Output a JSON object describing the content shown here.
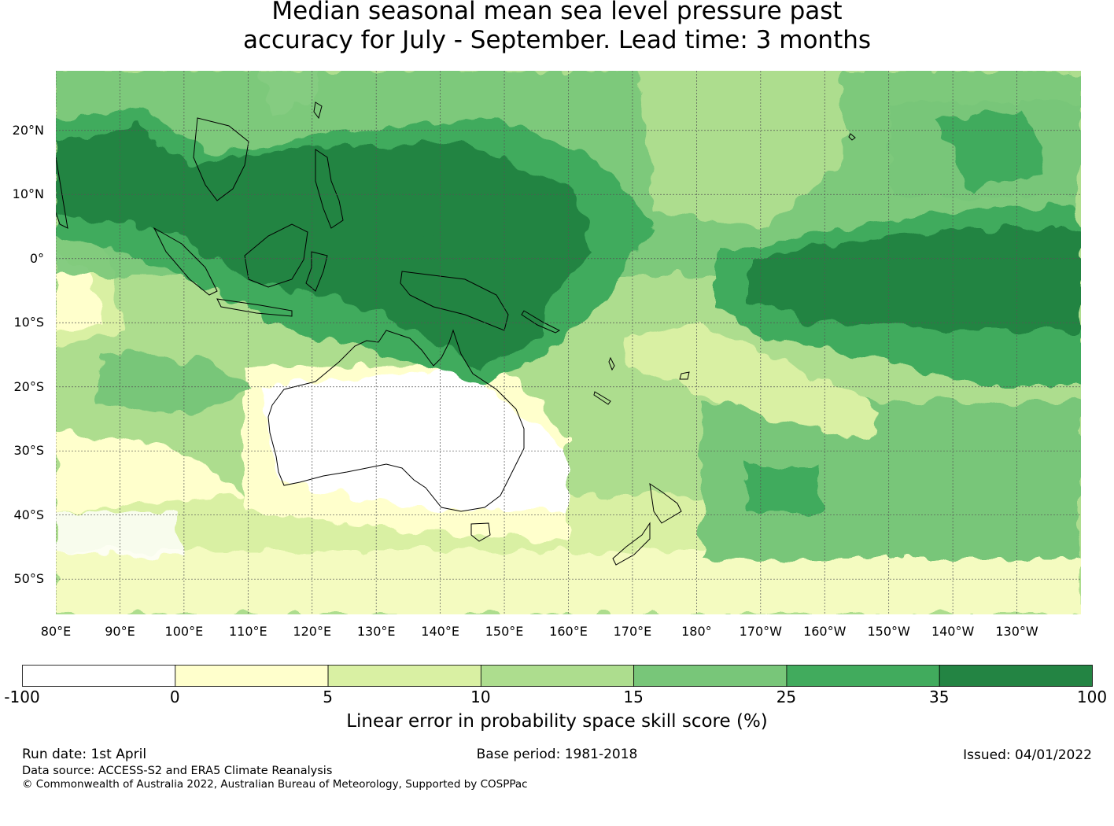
{
  "title": {
    "line1": "Median seasonal mean sea level pressure past",
    "line2": "accuracy for July - September. Lead time: 3 months"
  },
  "map": {
    "lat_labels": [
      "20°N",
      "10°N",
      "0°",
      "10°S",
      "20°S",
      "30°S",
      "40°S",
      "50°S"
    ],
    "lat_values": [
      20,
      10,
      0,
      -10,
      -20,
      -30,
      -40,
      -50
    ],
    "lon_labels": [
      "80°E",
      "90°E",
      "100°E",
      "110°E",
      "120°E",
      "130°E",
      "140°E",
      "150°E",
      "160°E",
      "170°E",
      "180°",
      "170°W",
      "160°W",
      "150°W",
      "140°W",
      "130°W"
    ],
    "lon_values": [
      80,
      90,
      100,
      110,
      120,
      130,
      140,
      150,
      160,
      170,
      180,
      190,
      200,
      210,
      220,
      230
    ],
    "lat_range": [
      -55.5,
      29.3
    ],
    "lon_range": [
      80,
      240
    ],
    "gridlines": true
  },
  "colorbar": {
    "ticks": [
      "-100",
      "0",
      "5",
      "10",
      "15",
      "25",
      "35",
      "100"
    ],
    "colors": [
      "#ffffff",
      "#ffffcc",
      "#d9f0a3",
      "#addd8e",
      "#78c679",
      "#41ab5d",
      "#238443"
    ],
    "label": "Linear error in probability space skill score (%)"
  },
  "footer": {
    "run_date": "Run date: 1st April",
    "base_period": "Base period: 1981-2018",
    "issued": "Issued: 04/01/2022",
    "data_source": "Data source: ACCESS-S2 and ERA5 Climate Reanalysis",
    "copyright": "© Commonwealth of Australia 2022, Australian Bureau of Meteorology, Supported by COSPPac"
  }
}
